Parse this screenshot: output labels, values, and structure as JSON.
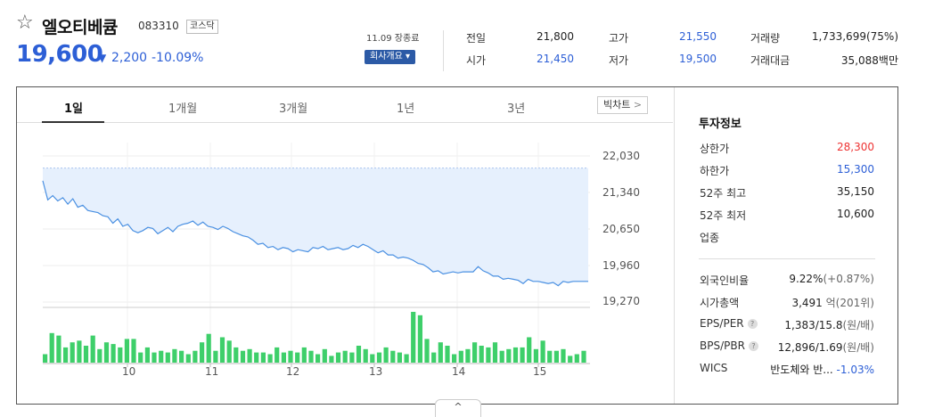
{
  "header": {
    "name": "엘오티베큠",
    "code": "083310",
    "market": "코스닥",
    "price": "19,600",
    "change_arrow": "▼",
    "change": "2,200",
    "change_pct": "-10.09%",
    "date": "11.09 장종료",
    "company_button": "회사개요",
    "dropdown_icon": "▾"
  },
  "quote": {
    "prev_label": "전일",
    "prev_value": "21,800",
    "open_label": "시가",
    "open_value": "21,450",
    "high_label": "고가",
    "high_value": "21,550",
    "low_label": "저가",
    "low_value": "19,500",
    "volume_label": "거래량",
    "volume_value": "1,733,699(75%)",
    "amount_label": "거래대금",
    "amount_value": "35,088백만"
  },
  "tabs": [
    "1일",
    "1개월",
    "3개월",
    "1년",
    "3년"
  ],
  "big_chart": "빅차트",
  "big_chart_icon": ">",
  "chart_data": {
    "type": "line",
    "y_ticks": [
      "22,030",
      "21,340",
      "20,650",
      "19,960",
      "19,270"
    ],
    "ylim": [
      19270,
      22030
    ],
    "reference_line": 21800,
    "x_ticks": [
      "10",
      "11",
      "12",
      "13",
      "14",
      "15"
    ],
    "price_series": [
      21560,
      21200,
      21280,
      21180,
      21240,
      21120,
      21220,
      21060,
      21100,
      21000,
      20980,
      20960,
      20900,
      20880,
      20760,
      20840,
      20700,
      20740,
      20620,
      20580,
      20620,
      20680,
      20660,
      20560,
      20620,
      20680,
      20600,
      20700,
      20740,
      20760,
      20800,
      20720,
      20780,
      20700,
      20680,
      20640,
      20700,
      20660,
      20600,
      20560,
      20520,
      20500,
      20440,
      20360,
      20380,
      20300,
      20320,
      20260,
      20300,
      20280,
      20220,
      20260,
      20240,
      20220,
      20300,
      20280,
      20320,
      20260,
      20280,
      20300,
      20260,
      20280,
      20340,
      20300,
      20360,
      20320,
      20260,
      20200,
      20240,
      20160,
      20160,
      20100,
      20120,
      20100,
      20060,
      20000,
      19980,
      19920,
      19840,
      19860,
      19800,
      19820,
      19840,
      19820,
      19840,
      19840,
      19840,
      19940,
      19860,
      19820,
      19760,
      19760,
      19700,
      19720,
      19700,
      19680,
      19620,
      19700,
      19660,
      19660,
      19640,
      19620,
      19640,
      19580,
      19660,
      19640,
      19660,
      19660,
      19660,
      19660
    ],
    "volume_series": [
      10,
      35,
      32,
      18,
      24,
      26,
      20,
      32,
      16,
      24,
      22,
      18,
      28,
      28,
      12,
      18,
      12,
      14,
      12,
      16,
      14,
      10,
      14,
      24,
      34,
      14,
      30,
      26,
      18,
      14,
      16,
      12,
      12,
      10,
      18,
      12,
      14,
      12,
      18,
      14,
      10,
      16,
      8,
      12,
      14,
      12,
      20,
      16,
      10,
      12,
      18,
      14,
      12,
      10,
      60,
      56,
      28,
      12,
      24,
      20,
      10,
      14,
      16,
      24,
      20,
      18,
      24,
      14,
      16,
      18,
      18,
      30,
      16,
      26,
      14,
      14,
      16,
      8,
      10,
      14
    ]
  },
  "invest": {
    "title": "투자정보",
    "items": [
      {
        "label": "상한가",
        "value": "28,300"
      },
      {
        "label": "하한가",
        "value": "15,300"
      },
      {
        "label": "52주 최고",
        "value": "35,150"
      },
      {
        "label": "52주 최저",
        "value": "10,600"
      },
      {
        "label": "업종",
        "value": ""
      }
    ],
    "foreign_label": "외국인비율",
    "foreign_value": "9.22%",
    "foreign_change": "(+0.87%)",
    "cap_label": "시가총액",
    "cap_value": "3,491",
    "cap_unit": "억(201위)",
    "eps_label": "EPS/PER",
    "eps_value": "1,383/15.8",
    "eps_unit": "(원/배)",
    "bps_label": "BPS/PBR",
    "bps_value": "12,896/1.69",
    "bps_unit": "(원/배)",
    "wics_label": "WICS",
    "wics_value": "반도체와 반...",
    "wics_change": "-1.03%",
    "help_icon": "?"
  },
  "expand_icon": "^",
  "colors": {
    "accent": "#2d5fd6",
    "up": "#e33",
    "volume": "#3ecf6a",
    "area": "#e6f0fd"
  }
}
